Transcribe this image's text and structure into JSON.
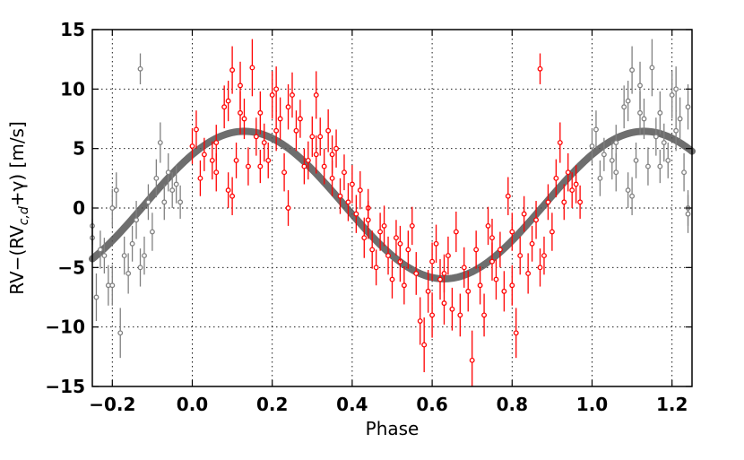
{
  "chart_data": {
    "type": "scatter",
    "title": "",
    "xlabel": "Phase",
    "ylabel": "RV−(RV",
    "ylabel_subscript": "c,d",
    "ylabel_tail": "+γ) [m/s]",
    "xlim": [
      -0.25,
      1.25
    ],
    "ylim": [
      -15,
      15
    ],
    "xticks": [
      -0.2,
      0.0,
      0.2,
      0.4,
      0.6,
      0.8,
      1.0,
      1.2
    ],
    "xtick_labels": [
      "−0.2",
      "0.0",
      "0.2",
      "0.4",
      "0.6",
      "0.8",
      "1.0",
      "1.2"
    ],
    "yticks": [
      -15,
      -10,
      -5,
      0,
      5,
      10,
      15
    ],
    "ytick_labels": [
      "−15",
      "−10",
      "−5",
      "0",
      "5",
      "10",
      "15"
    ],
    "grid": true,
    "legend": "none",
    "colors": {
      "data": "#ff0000",
      "duplicate": "#808080",
      "model": "#555555"
    },
    "model": {
      "name": "",
      "amplitude": 6.2,
      "offset": 0.25,
      "phase_of_max": 0.13
    },
    "series": [
      {
        "kind": "data",
        "points": [
          [
            0.0,
            5.2,
            1.5
          ],
          [
            0.01,
            6.6,
            1.6
          ],
          [
            0.02,
            2.5,
            1.5
          ],
          [
            0.03,
            4.5,
            1.4
          ],
          [
            0.05,
            4.0,
            1.6
          ],
          [
            0.06,
            5.5,
            1.5
          ],
          [
            0.08,
            8.5,
            1.8
          ],
          [
            0.09,
            9.0,
            1.7
          ],
          [
            0.1,
            11.6,
            2.0
          ],
          [
            0.1,
            1.0,
            1.6
          ],
          [
            0.11,
            4.0,
            1.5
          ],
          [
            0.12,
            10.3,
            2.0
          ],
          [
            0.13,
            7.5,
            1.7
          ],
          [
            0.14,
            3.5,
            1.6
          ],
          [
            0.15,
            11.8,
            2.4
          ],
          [
            0.16,
            6.0,
            1.6
          ],
          [
            0.17,
            3.5,
            1.4
          ],
          [
            0.18,
            5.5,
            1.6
          ],
          [
            0.19,
            4.0,
            1.5
          ],
          [
            0.2,
            9.5,
            2.0
          ],
          [
            0.21,
            10.0,
            1.9
          ],
          [
            0.22,
            7.5,
            1.8
          ],
          [
            0.23,
            3.0,
            1.6
          ],
          [
            0.24,
            0.0,
            1.5
          ],
          [
            0.25,
            9.5,
            1.9
          ],
          [
            0.26,
            6.5,
            1.7
          ],
          [
            0.27,
            7.5,
            1.6
          ],
          [
            0.28,
            3.5,
            1.5
          ],
          [
            0.3,
            6.0,
            1.7
          ],
          [
            0.31,
            4.5,
            1.6
          ],
          [
            0.32,
            6.0,
            1.6
          ],
          [
            0.33,
            3.5,
            1.5
          ],
          [
            0.34,
            6.5,
            1.8
          ],
          [
            0.35,
            2.5,
            1.5
          ],
          [
            0.36,
            5.0,
            1.6
          ],
          [
            0.37,
            1.0,
            1.5
          ],
          [
            0.38,
            3.0,
            1.5
          ],
          [
            0.4,
            2.0,
            1.6
          ],
          [
            0.41,
            -0.5,
            1.6
          ],
          [
            0.42,
            1.5,
            1.6
          ],
          [
            0.43,
            -2.5,
            1.7
          ],
          [
            0.44,
            0.0,
            1.6
          ],
          [
            0.45,
            -3.5,
            1.6
          ],
          [
            0.46,
            -5.0,
            1.5
          ],
          [
            0.48,
            -1.5,
            1.7
          ],
          [
            0.49,
            -4.0,
            1.6
          ],
          [
            0.5,
            -6.0,
            1.6
          ],
          [
            0.51,
            -2.5,
            1.5
          ],
          [
            0.52,
            -4.5,
            1.7
          ],
          [
            0.53,
            -6.5,
            1.6
          ],
          [
            0.54,
            -3.5,
            1.6
          ],
          [
            0.56,
            -5.5,
            1.8
          ],
          [
            0.57,
            -9.5,
            2.0
          ],
          [
            0.58,
            -11.5,
            2.3
          ],
          [
            0.59,
            -7.0,
            1.8
          ],
          [
            0.6,
            -4.5,
            1.6
          ],
          [
            0.61,
            -3.0,
            1.6
          ],
          [
            0.62,
            -6.0,
            1.7
          ],
          [
            0.63,
            -8.0,
            1.8
          ],
          [
            0.64,
            -4.0,
            1.6
          ],
          [
            0.65,
            -8.5,
            1.8
          ],
          [
            0.66,
            -2.0,
            1.7
          ],
          [
            0.67,
            -9.0,
            1.8
          ],
          [
            0.68,
            -5.0,
            1.7
          ],
          [
            0.69,
            -7.0,
            1.7
          ],
          [
            0.7,
            -12.8,
            2.5
          ],
          [
            0.71,
            -3.5,
            1.6
          ],
          [
            0.72,
            -6.5,
            1.6
          ],
          [
            0.73,
            -9.0,
            1.8
          ],
          [
            0.74,
            -1.5,
            1.6
          ],
          [
            0.75,
            -4.5,
            1.6
          ],
          [
            0.76,
            -6.0,
            1.7
          ],
          [
            0.77,
            -3.5,
            1.5
          ],
          [
            0.78,
            -7.0,
            1.7
          ],
          [
            0.79,
            1.0,
            1.6
          ],
          [
            0.8,
            -2.0,
            1.6
          ],
          [
            0.81,
            -10.5,
            2.1
          ],
          [
            0.82,
            -4.0,
            1.6
          ],
          [
            0.83,
            -0.5,
            1.5
          ],
          [
            0.84,
            -5.5,
            1.7
          ],
          [
            0.85,
            -3.0,
            1.5
          ],
          [
            0.86,
            -1.0,
            1.6
          ],
          [
            0.87,
            11.7,
            1.3
          ],
          [
            0.88,
            -4.0,
            1.6
          ],
          [
            0.89,
            0.5,
            1.5
          ],
          [
            0.9,
            -2.0,
            1.6
          ],
          [
            0.91,
            2.5,
            1.6
          ],
          [
            0.92,
            5.5,
            1.7
          ],
          [
            0.93,
            0.5,
            1.5
          ],
          [
            0.94,
            3.0,
            1.6
          ],
          [
            0.95,
            1.5,
            1.5
          ],
          [
            0.96,
            2.0,
            1.6
          ],
          [
            0.97,
            0.5,
            1.4
          ],
          [
            0.31,
            9.5,
            2.0
          ],
          [
            0.24,
            8.5,
            1.9
          ],
          [
            0.12,
            8.0,
            1.8
          ],
          [
            0.29,
            4.0,
            1.6
          ],
          [
            0.39,
            0.5,
            1.6
          ],
          [
            0.47,
            -2.0,
            1.6
          ],
          [
            0.55,
            -1.5,
            1.6
          ],
          [
            0.63,
            -5.5,
            1.6
          ],
          [
            0.8,
            -6.5,
            1.7
          ],
          [
            0.09,
            1.5,
            1.5
          ],
          [
            0.21,
            6.5,
            1.7
          ],
          [
            0.35,
            4.5,
            1.6
          ],
          [
            0.44,
            -1.0,
            1.6
          ],
          [
            0.52,
            -3.0,
            1.5
          ],
          [
            0.6,
            -9.0,
            1.9
          ],
          [
            0.75,
            -2.5,
            1.6
          ],
          [
            0.87,
            -5.0,
            1.6
          ],
          [
            0.06,
            3.0,
            1.6
          ],
          [
            0.17,
            8.0,
            1.8
          ]
        ]
      },
      {
        "kind": "duplicate",
        "points": [
          [
            -0.25,
            -1.5,
            1.6
          ],
          [
            -0.24,
            -7.5,
            2.0
          ],
          [
            -0.23,
            -3.5,
            1.6
          ],
          [
            -0.22,
            -4.0,
            1.5
          ],
          [
            -0.21,
            -6.5,
            1.7
          ],
          [
            -0.2,
            0.0,
            1.6
          ],
          [
            -0.19,
            1.5,
            1.5
          ],
          [
            -0.18,
            -10.5,
            2.1
          ],
          [
            -0.17,
            -4.0,
            1.6
          ],
          [
            -0.16,
            -5.5,
            1.7
          ],
          [
            -0.15,
            -3.0,
            1.5
          ],
          [
            -0.14,
            -1.0,
            1.6
          ],
          [
            -0.13,
            11.7,
            1.3
          ],
          [
            -0.12,
            -4.0,
            1.6
          ],
          [
            -0.11,
            0.5,
            1.5
          ],
          [
            -0.1,
            -2.0,
            1.6
          ],
          [
            -0.09,
            2.5,
            1.6
          ],
          [
            -0.08,
            5.5,
            1.7
          ],
          [
            -0.07,
            0.5,
            1.5
          ],
          [
            -0.06,
            3.0,
            1.6
          ],
          [
            -0.05,
            1.5,
            1.5
          ],
          [
            -0.04,
            2.0,
            1.6
          ],
          [
            -0.03,
            0.5,
            1.4
          ],
          [
            -0.2,
            -6.5,
            1.7
          ],
          [
            -0.13,
            -5.0,
            1.6
          ],
          [
            -0.25,
            -2.5,
            1.6
          ],
          [
            1.0,
            5.2,
            1.5
          ],
          [
            1.01,
            6.6,
            1.6
          ],
          [
            1.02,
            2.5,
            1.5
          ],
          [
            1.03,
            4.5,
            1.4
          ],
          [
            1.05,
            4.0,
            1.6
          ],
          [
            1.06,
            5.5,
            1.5
          ],
          [
            1.08,
            8.5,
            1.8
          ],
          [
            1.09,
            9.0,
            1.7
          ],
          [
            1.1,
            11.6,
            2.0
          ],
          [
            1.1,
            1.0,
            1.6
          ],
          [
            1.11,
            4.0,
            1.5
          ],
          [
            1.12,
            10.3,
            2.0
          ],
          [
            1.13,
            7.5,
            1.7
          ],
          [
            1.14,
            3.5,
            1.6
          ],
          [
            1.15,
            11.8,
            2.4
          ],
          [
            1.16,
            6.0,
            1.6
          ],
          [
            1.17,
            3.5,
            1.4
          ],
          [
            1.18,
            5.5,
            1.6
          ],
          [
            1.19,
            4.0,
            1.5
          ],
          [
            1.2,
            9.5,
            2.0
          ],
          [
            1.21,
            10.0,
            1.9
          ],
          [
            1.22,
            7.5,
            1.8
          ],
          [
            1.23,
            3.0,
            1.6
          ],
          [
            1.24,
            0.0,
            1.5
          ],
          [
            1.12,
            8.0,
            1.8
          ],
          [
            1.09,
            1.5,
            1.5
          ],
          [
            1.06,
            3.0,
            1.6
          ],
          [
            1.17,
            8.0,
            1.8
          ],
          [
            1.21,
            6.5,
            1.7
          ],
          [
            1.24,
            8.5,
            1.9
          ],
          [
            1.24,
            -0.5,
            1.6
          ]
        ]
      }
    ]
  }
}
